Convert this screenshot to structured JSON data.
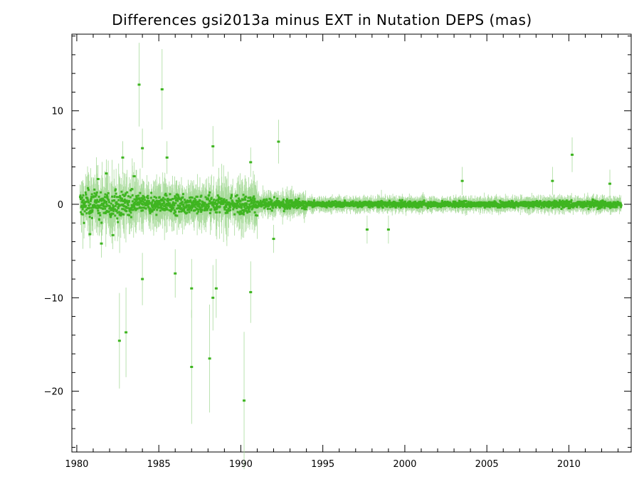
{
  "chart_data": {
    "type": "scatter",
    "title": "Differences gsi2013a minus EXT in Nutation DEPS (mas)",
    "xlabel": "",
    "ylabel": "",
    "xlim": [
      1979.7,
      2013.8
    ],
    "ylim": [
      -26.5,
      18.2
    ],
    "x_ticks": [
      1980,
      1985,
      1990,
      1995,
      2000,
      2005,
      2010
    ],
    "y_ticks": [
      -20,
      -10,
      0,
      10
    ],
    "x_tick_labels": [
      "1980",
      "1985",
      "1990",
      "1995",
      "2000",
      "2005",
      "2010"
    ],
    "y_tick_labels": [
      "−20",
      "−10",
      "0",
      "10"
    ],
    "grid": false,
    "legend": "none",
    "point_color": "#3fb521",
    "errorbar_color": "#a9db9c",
    "notable_points": [
      {
        "x": 1983.8,
        "y": 12.8
      },
      {
        "x": 1985.2,
        "y": 12.3
      },
      {
        "x": 1984.0,
        "y": 6.0
      },
      {
        "x": 1985.5,
        "y": 5.0
      },
      {
        "x": 1988.3,
        "y": 6.2
      },
      {
        "x": 1992.3,
        "y": 6.7
      },
      {
        "x": 1990.6,
        "y": 4.5
      },
      {
        "x": 2010.2,
        "y": 5.3
      },
      {
        "x": 1982.6,
        "y": -14.6
      },
      {
        "x": 1983.0,
        "y": -13.7
      },
      {
        "x": 1987.0,
        "y": -17.4
      },
      {
        "x": 1988.1,
        "y": -16.5
      },
      {
        "x": 1990.2,
        "y": -21.0
      },
      {
        "x": 1990.6,
        "y": -9.4
      },
      {
        "x": 1988.5,
        "y": -9.0
      },
      {
        "x": 1987.0,
        "y": -9.0
      },
      {
        "x": 1984.0,
        "y": -8.0
      },
      {
        "x": 1986.0,
        "y": -7.4
      },
      {
        "x": 1988.3,
        "y": -10.0
      },
      {
        "x": 1997.7,
        "y": -2.7
      },
      {
        "x": 1999.0,
        "y": -2.7
      },
      {
        "x": 1992.0,
        "y": -3.7
      },
      {
        "x": 2003.5,
        "y": 2.5
      },
      {
        "x": 2009.0,
        "y": 2.5
      },
      {
        "x": 2012.5,
        "y": 2.2
      },
      {
        "x": 1982.8,
        "y": 5.0
      },
      {
        "x": 1981.8,
        "y": 3.3
      },
      {
        "x": 1981.3,
        "y": 2.7
      },
      {
        "x": 1983.5,
        "y": 3.0
      },
      {
        "x": 1982.2,
        "y": -3.3
      },
      {
        "x": 1980.8,
        "y": -3.2
      },
      {
        "x": 1981.5,
        "y": -4.2
      }
    ]
  }
}
